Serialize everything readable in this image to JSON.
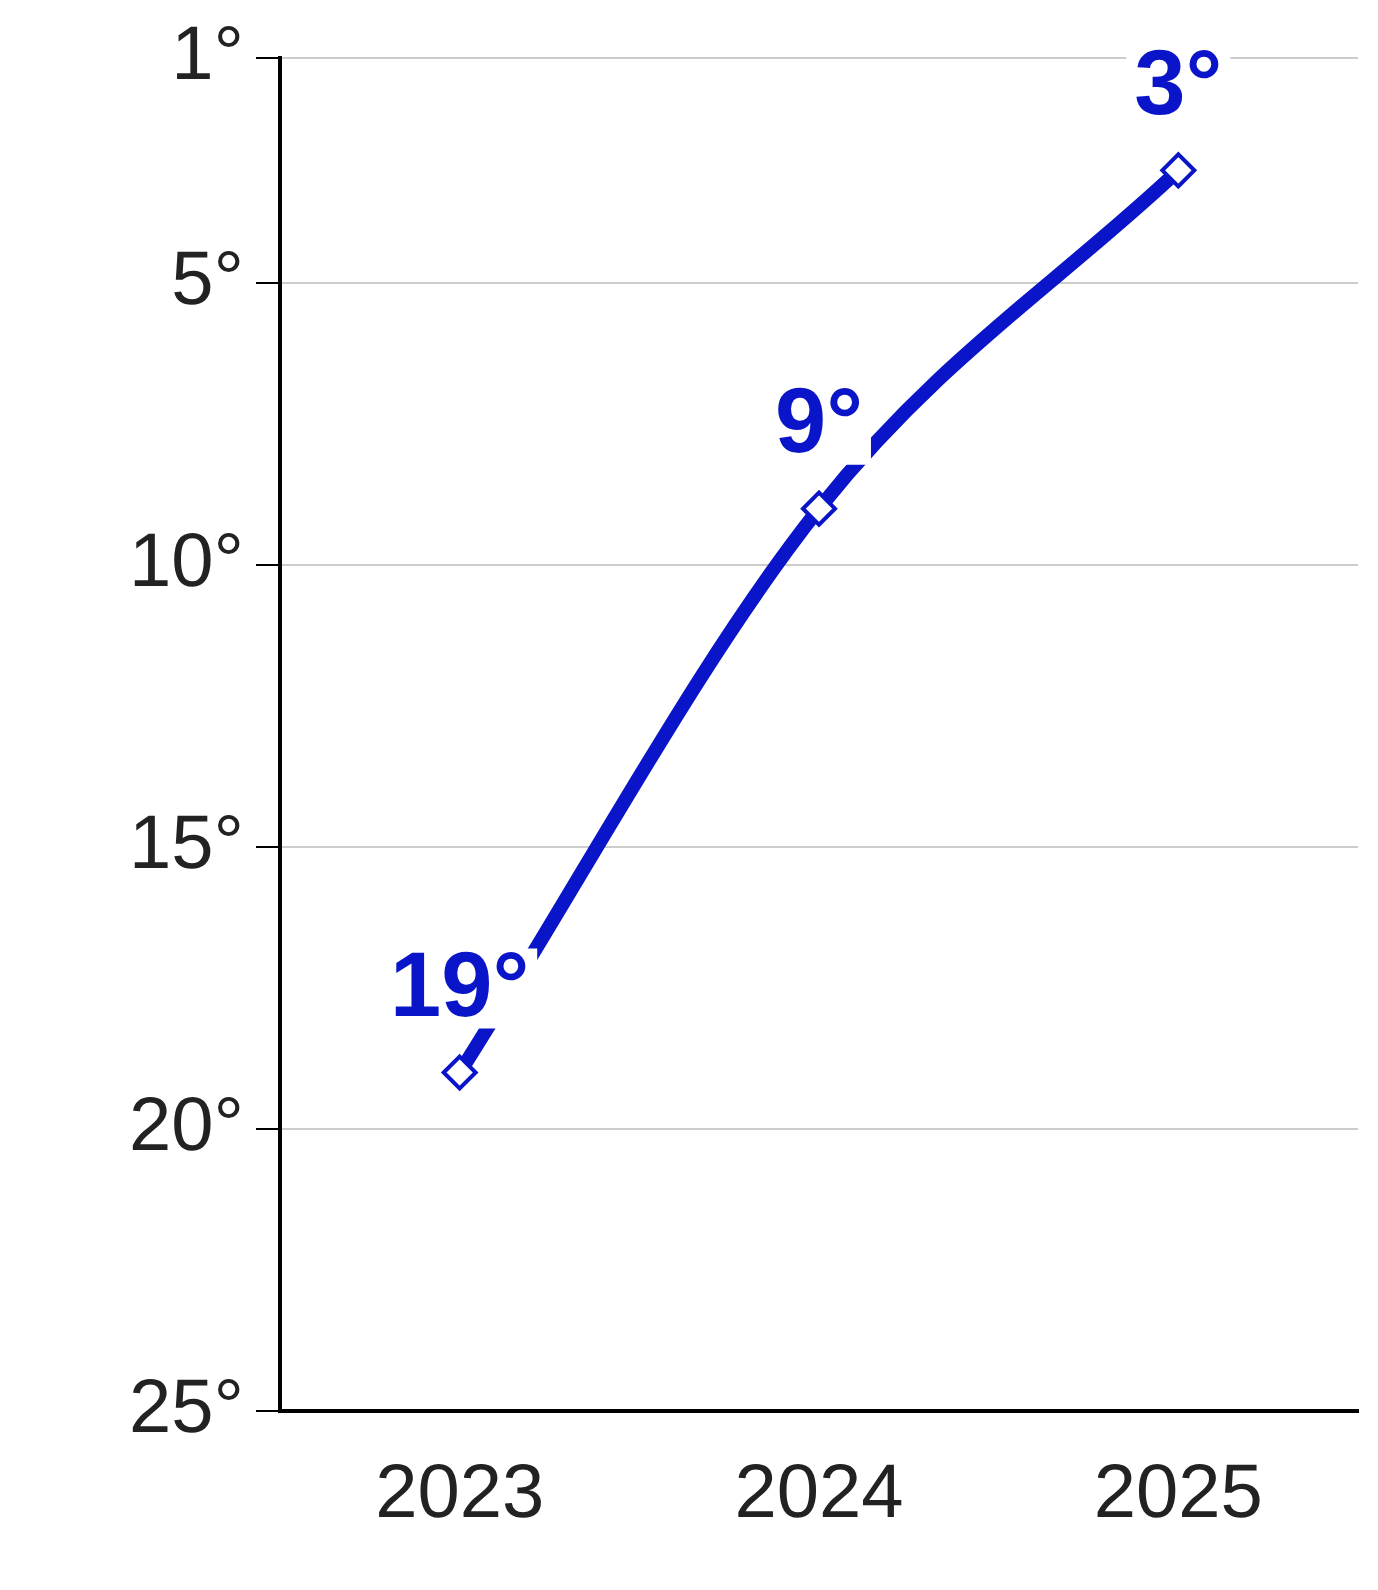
{
  "chart_data": {
    "type": "line",
    "categories": [
      "2023",
      "2024",
      "2025"
    ],
    "series": [
      {
        "color": "#0a14c8",
        "values": [
          19,
          9,
          3
        ],
        "value_labels": [
          "19°",
          "9°",
          "3°"
        ]
      }
    ],
    "ylim": [
      25,
      1
    ],
    "yticks": [
      {
        "value": 1,
        "label": "1°"
      },
      {
        "value": 5,
        "label": "5°"
      },
      {
        "value": 10,
        "label": "10°"
      },
      {
        "value": 15,
        "label": "15°"
      },
      {
        "value": 20,
        "label": "20°"
      },
      {
        "value": 25,
        "label": "25°"
      }
    ],
    "grid": "y",
    "legend": false,
    "marker": "diamond",
    "line_style": "solid"
  }
}
